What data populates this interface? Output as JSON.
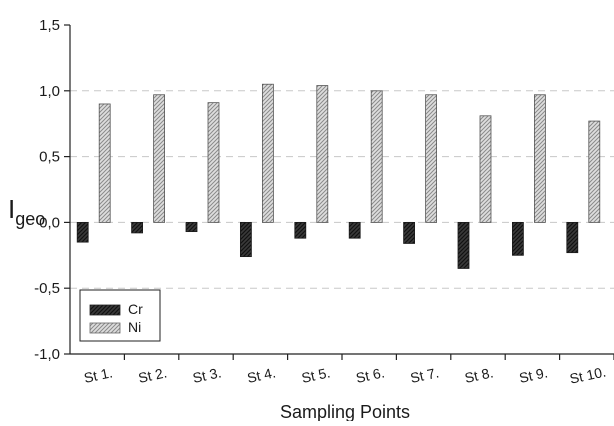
{
  "chart_data": {
    "type": "bar",
    "title": "",
    "xlabel": "Sampling Points",
    "ylabel": {
      "main": "I",
      "sub": "geo"
    },
    "ylim": [
      -1.0,
      1.5
    ],
    "yticks": [
      -1.0,
      -0.5,
      0.0,
      0.5,
      1.0,
      1.5
    ],
    "ytick_labels": [
      "-1,0",
      "-0,5",
      "0,0",
      "0,5",
      "1,0",
      "1,5"
    ],
    "grid": "dashed horizontal at major ticks",
    "legend_position": "bottom-left",
    "categories": [
      "St 1.",
      "St 2.",
      "St 3.",
      "St 4.",
      "St 5.",
      "St 6.",
      "St 7.",
      "St 8.",
      "St 9.",
      "St 10."
    ],
    "series": [
      {
        "name": "Cr",
        "values": [
          -0.15,
          -0.08,
          -0.07,
          -0.26,
          -0.12,
          -0.12,
          -0.16,
          -0.35,
          -0.25,
          -0.23
        ],
        "color": "#2b2b2b",
        "pattern": "dark-hatch"
      },
      {
        "name": "Ni",
        "values": [
          0.9,
          0.97,
          0.91,
          1.05,
          1.04,
          1.0,
          0.97,
          0.81,
          0.97,
          0.77
        ],
        "color": "#c9c9c9",
        "pattern": "light-hatch"
      }
    ]
  }
}
